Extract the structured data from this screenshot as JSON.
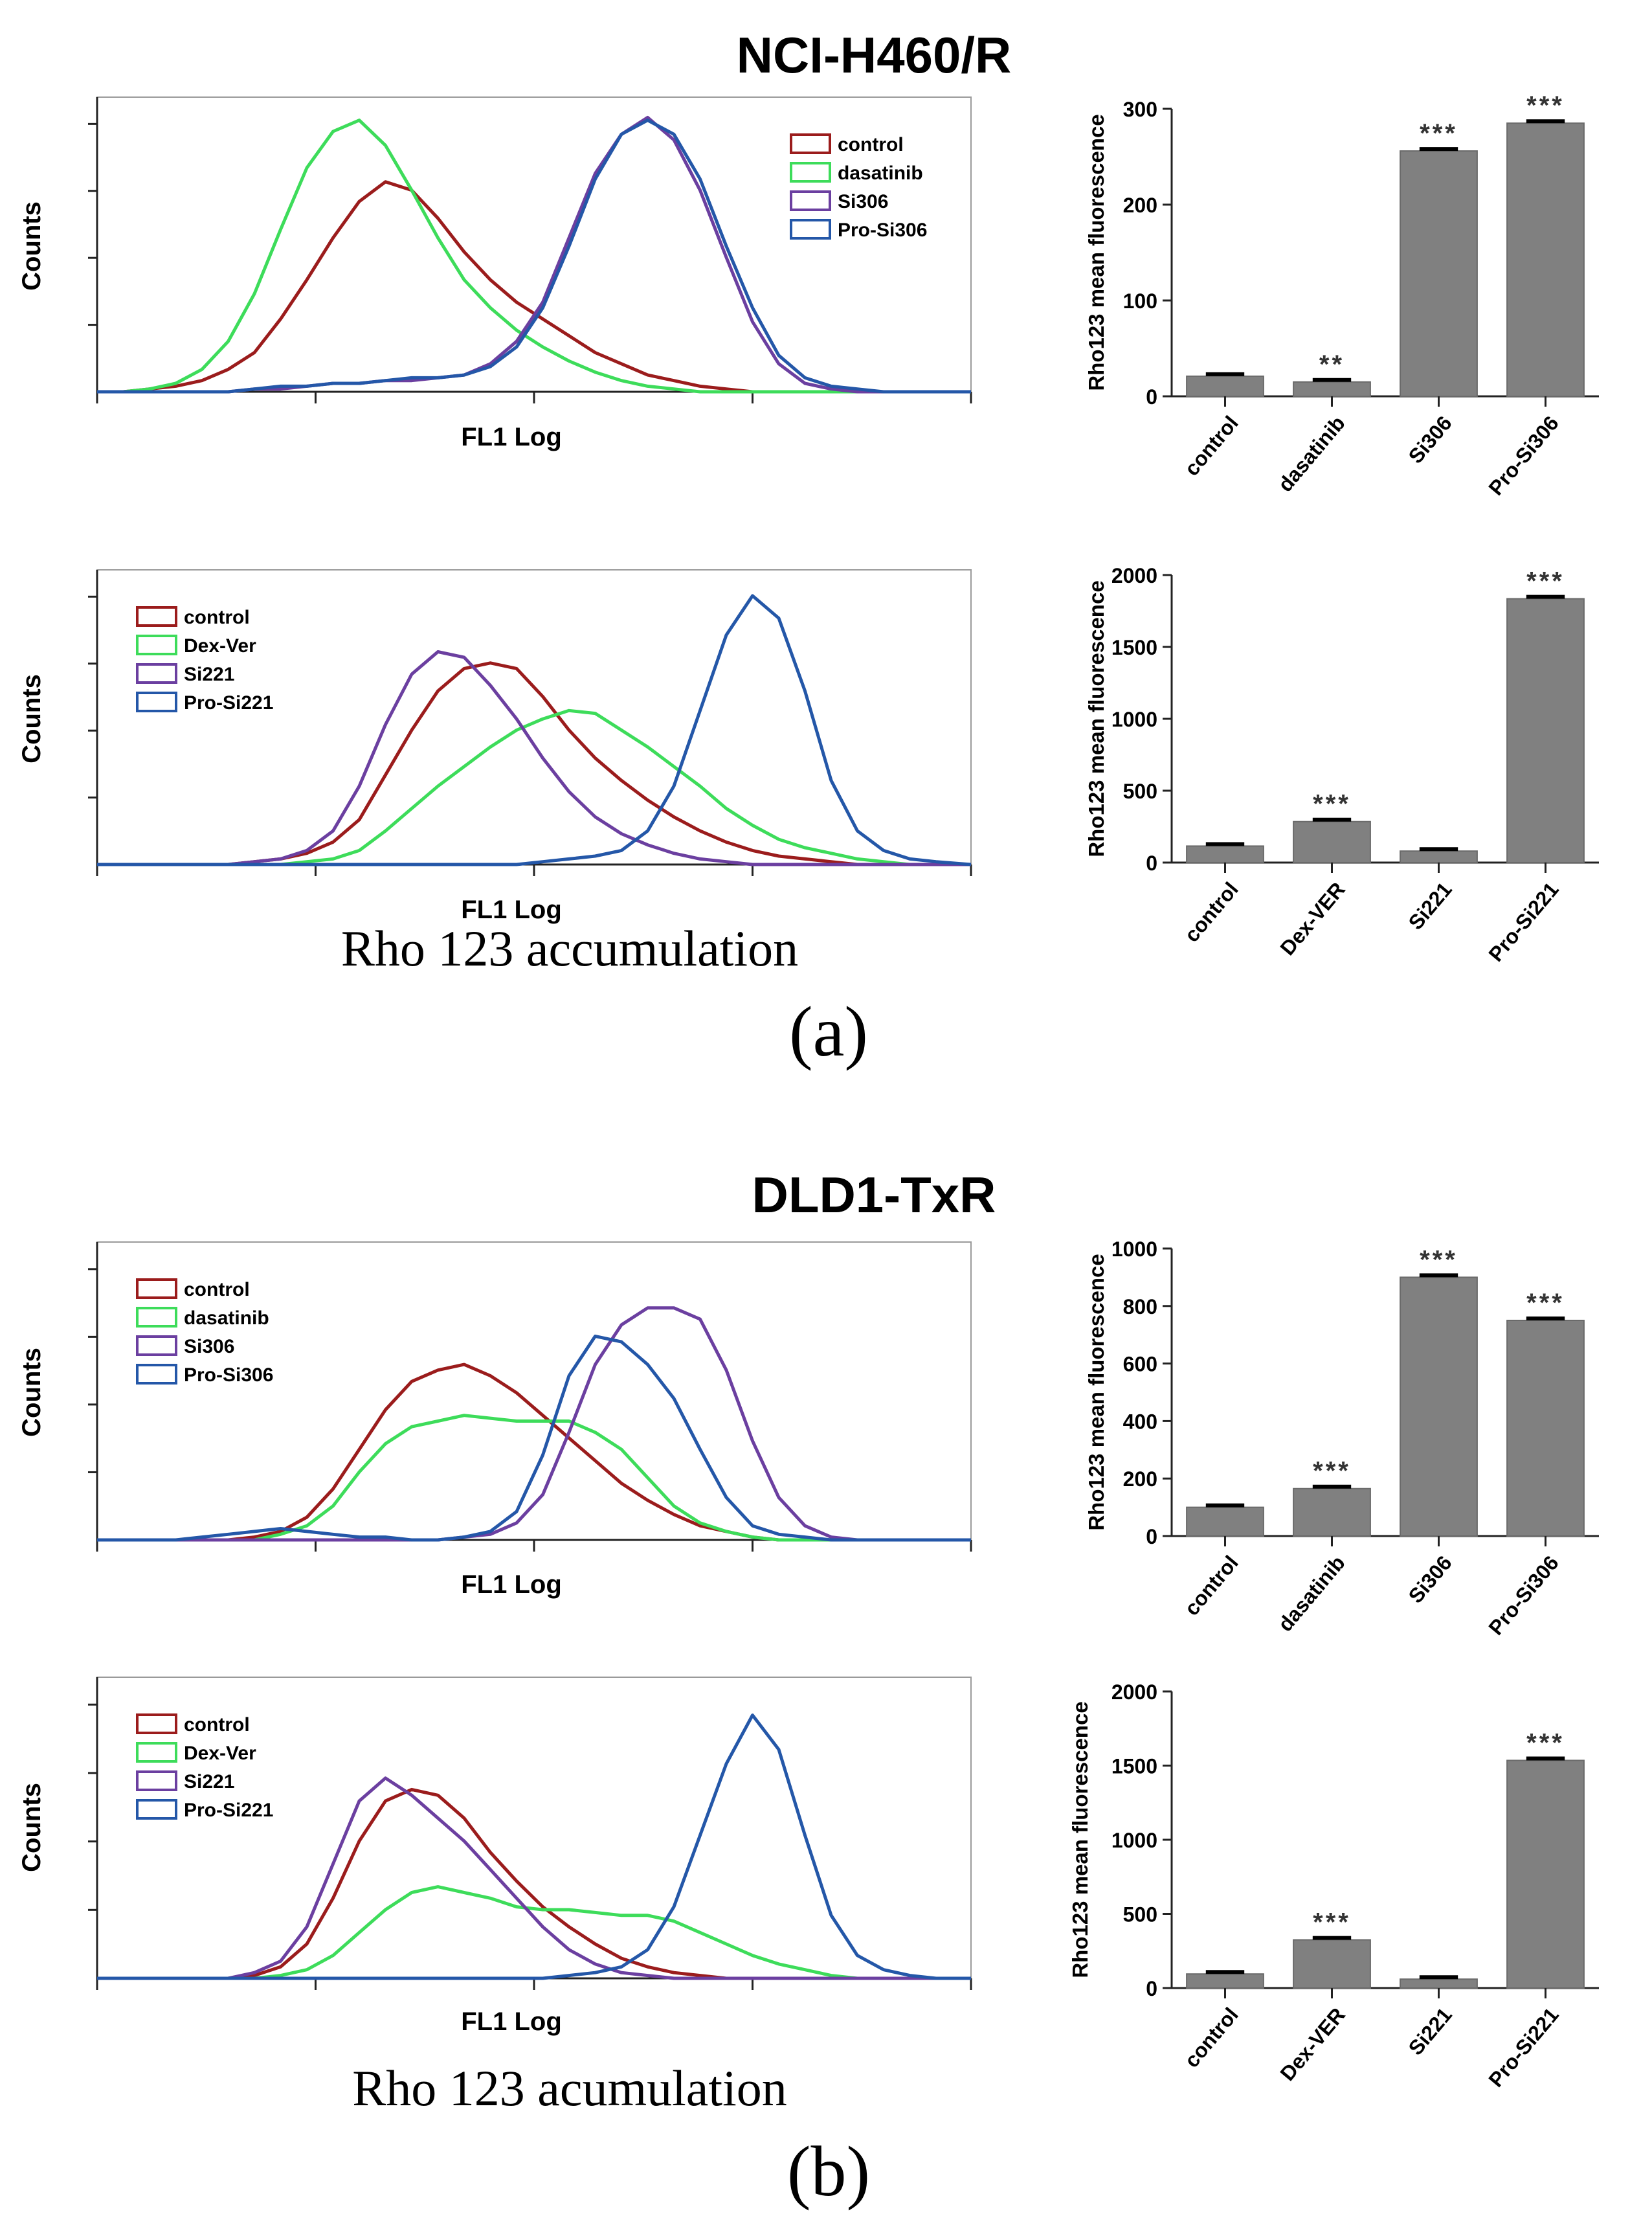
{
  "figure": {
    "section_a": {
      "title": "NCI-H460/R",
      "caption": "Rho 123 accumulation",
      "label": "(a)"
    },
    "section_b": {
      "title": "DLD1-TxR",
      "caption": "Rho 123 acumulation",
      "label": "(b)"
    }
  },
  "colors": {
    "control": "#9b1c1c",
    "dasatinib": "#3ddc5a",
    "Dex-Ver": "#3ddc5a",
    "Si306": "#6b3fa0",
    "Si221": "#6b3fa0",
    "Pro-Si306": "#2457a8",
    "Pro-Si221": "#2457a8",
    "bar": "#808080"
  },
  "chart_data": [
    {
      "type": "line",
      "id": "hist_a1",
      "title": "",
      "xlabel": "FL1 Log",
      "ylabel": "Counts",
      "legend_position": "top-right",
      "x": [
        0,
        3,
        6,
        9,
        12,
        15,
        18,
        21,
        24,
        27,
        30,
        33,
        36,
        39,
        42,
        45,
        48,
        51,
        54,
        57,
        60,
        63,
        66,
        69,
        72,
        75,
        78,
        81,
        84,
        87,
        90,
        93,
        96,
        100
      ],
      "series": [
        {
          "name": "control",
          "values": [
            0,
            0,
            1,
            2,
            4,
            8,
            14,
            26,
            40,
            55,
            68,
            75,
            72,
            62,
            50,
            40,
            32,
            26,
            20,
            14,
            10,
            6,
            4,
            2,
            1,
            0,
            0,
            0,
            0,
            0,
            0,
            0,
            0,
            0
          ]
        },
        {
          "name": "dasatinib",
          "values": [
            0,
            0,
            1,
            3,
            8,
            18,
            35,
            58,
            80,
            93,
            97,
            88,
            72,
            55,
            40,
            30,
            22,
            16,
            11,
            7,
            4,
            2,
            1,
            0,
            0,
            0,
            0,
            0,
            0,
            0,
            0,
            0,
            0,
            0
          ]
        },
        {
          "name": "Si306",
          "values": [
            0,
            0,
            0,
            0,
            0,
            0,
            1,
            1,
            2,
            3,
            3,
            4,
            4,
            5,
            6,
            10,
            18,
            32,
            55,
            78,
            92,
            98,
            90,
            72,
            48,
            25,
            10,
            3,
            1,
            0,
            0,
            0,
            0,
            0
          ]
        },
        {
          "name": "Pro-Si306",
          "values": [
            0,
            0,
            0,
            0,
            0,
            0,
            1,
            2,
            2,
            3,
            3,
            4,
            5,
            5,
            6,
            9,
            16,
            30,
            52,
            76,
            92,
            97,
            92,
            76,
            52,
            30,
            13,
            5,
            2,
            1,
            0,
            0,
            0,
            0
          ]
        }
      ]
    },
    {
      "type": "bar",
      "id": "bar_a1",
      "ylabel": "Rho123 mean fluorescence",
      "ylim": [
        0,
        300
      ],
      "yticks": [
        0,
        100,
        200,
        300
      ],
      "categories": [
        "control",
        "dasatinib",
        "Si306",
        "Pro-Si306"
      ],
      "values": [
        21,
        15,
        256,
        285
      ],
      "significance": [
        "",
        "**",
        "***",
        "***"
      ]
    },
    {
      "type": "line",
      "id": "hist_a2",
      "title": "",
      "xlabel": "FL1 Log",
      "ylabel": "Counts",
      "legend_position": "top-left",
      "x": [
        0,
        3,
        6,
        9,
        12,
        15,
        18,
        21,
        24,
        27,
        30,
        33,
        36,
        39,
        42,
        45,
        48,
        51,
        54,
        57,
        60,
        63,
        66,
        69,
        72,
        75,
        78,
        81,
        84,
        87,
        90,
        93,
        96,
        100
      ],
      "series": [
        {
          "name": "control",
          "values": [
            0,
            0,
            0,
            0,
            0,
            0,
            1,
            2,
            4,
            8,
            16,
            32,
            48,
            62,
            70,
            72,
            70,
            60,
            48,
            38,
            30,
            23,
            17,
            12,
            8,
            5,
            3,
            2,
            1,
            0,
            0,
            0,
            0,
            0
          ]
        },
        {
          "name": "Dex-Ver",
          "values": [
            0,
            0,
            0,
            0,
            0,
            0,
            0,
            0,
            1,
            2,
            5,
            12,
            20,
            28,
            35,
            42,
            48,
            52,
            55,
            54,
            48,
            42,
            35,
            28,
            20,
            14,
            9,
            6,
            4,
            2,
            1,
            0,
            0,
            0
          ]
        },
        {
          "name": "Si221",
          "values": [
            0,
            0,
            0,
            0,
            0,
            0,
            1,
            2,
            5,
            12,
            28,
            50,
            68,
            76,
            74,
            64,
            52,
            38,
            26,
            17,
            11,
            7,
            4,
            2,
            1,
            0,
            0,
            0,
            0,
            0,
            0,
            0,
            0,
            0
          ]
        },
        {
          "name": "Pro-Si221",
          "values": [
            0,
            0,
            0,
            0,
            0,
            0,
            0,
            0,
            0,
            0,
            0,
            0,
            0,
            0,
            0,
            0,
            0,
            1,
            2,
            3,
            5,
            12,
            28,
            55,
            82,
            96,
            88,
            62,
            30,
            12,
            5,
            2,
            1,
            0
          ]
        }
      ]
    },
    {
      "type": "bar",
      "id": "bar_a2",
      "ylabel": "Rho123 mean fluorescence",
      "ylim": [
        0,
        2000
      ],
      "yticks": [
        0,
        500,
        1000,
        1500,
        2000
      ],
      "categories": [
        "control",
        "Dex-VER",
        "Si221",
        "Pro-Si221"
      ],
      "values": [
        115,
        285,
        80,
        1835
      ],
      "significance": [
        "",
        "***",
        "",
        "***"
      ]
    },
    {
      "type": "line",
      "id": "hist_b1",
      "title": "",
      "xlabel": "FL1 Log",
      "ylabel": "Counts",
      "legend_position": "top-left",
      "x": [
        0,
        3,
        6,
        9,
        12,
        15,
        18,
        21,
        24,
        27,
        30,
        33,
        36,
        39,
        42,
        45,
        48,
        51,
        54,
        57,
        60,
        63,
        66,
        69,
        72,
        75,
        78,
        81,
        84,
        87,
        90,
        93,
        96,
        100
      ],
      "series": [
        {
          "name": "control",
          "values": [
            0,
            0,
            0,
            0,
            0,
            0,
            1,
            3,
            8,
            18,
            32,
            46,
            56,
            60,
            62,
            58,
            52,
            44,
            36,
            28,
            20,
            14,
            9,
            5,
            3,
            1,
            0,
            0,
            0,
            0,
            0,
            0,
            0,
            0
          ]
        },
        {
          "name": "dasatinib",
          "values": [
            0,
            0,
            0,
            0,
            0,
            0,
            0,
            2,
            5,
            12,
            24,
            34,
            40,
            42,
            44,
            43,
            42,
            42,
            42,
            38,
            32,
            22,
            12,
            6,
            3,
            1,
            0,
            0,
            0,
            0,
            0,
            0,
            0,
            0
          ]
        },
        {
          "name": "Si306",
          "values": [
            0,
            0,
            0,
            0,
            0,
            0,
            0,
            0,
            0,
            0,
            0,
            0,
            0,
            0,
            1,
            2,
            6,
            16,
            38,
            62,
            76,
            82,
            82,
            78,
            60,
            35,
            15,
            5,
            1,
            0,
            0,
            0,
            0,
            0
          ]
        },
        {
          "name": "Pro-Si306",
          "values": [
            0,
            0,
            0,
            0,
            1,
            2,
            3,
            4,
            3,
            2,
            1,
            1,
            0,
            0,
            1,
            3,
            10,
            30,
            58,
            72,
            70,
            62,
            50,
            32,
            15,
            5,
            2,
            1,
            0,
            0,
            0,
            0,
            0,
            0
          ]
        }
      ]
    },
    {
      "type": "bar",
      "id": "bar_b1",
      "ylabel": "Rho123 mean fluorescence",
      "ylim": [
        0,
        1000
      ],
      "yticks": [
        0,
        200,
        400,
        600,
        800,
        1000
      ],
      "categories": [
        "control",
        "dasatinib",
        "Si306",
        "Pro-Si306"
      ],
      "values": [
        100,
        165,
        900,
        750
      ],
      "significance": [
        "",
        "***",
        "***",
        "***"
      ]
    },
    {
      "type": "line",
      "id": "hist_b2",
      "title": "",
      "xlabel": "FL1 Log",
      "ylabel": "Counts",
      "legend_position": "top-left",
      "x": [
        0,
        3,
        6,
        9,
        12,
        15,
        18,
        21,
        24,
        27,
        30,
        33,
        36,
        39,
        42,
        45,
        48,
        51,
        54,
        57,
        60,
        63,
        66,
        69,
        72,
        75,
        78,
        81,
        84,
        87,
        90,
        93,
        96,
        100
      ],
      "series": [
        {
          "name": "control",
          "values": [
            0,
            0,
            0,
            0,
            0,
            0,
            1,
            4,
            12,
            28,
            48,
            62,
            66,
            64,
            56,
            44,
            34,
            25,
            18,
            12,
            7,
            4,
            2,
            1,
            0,
            0,
            0,
            0,
            0,
            0,
            0,
            0,
            0,
            0
          ]
        },
        {
          "name": "Dex-Ver",
          "values": [
            0,
            0,
            0,
            0,
            0,
            0,
            0,
            1,
            3,
            8,
            16,
            24,
            30,
            32,
            30,
            28,
            25,
            24,
            24,
            23,
            22,
            22,
            20,
            16,
            12,
            8,
            5,
            3,
            1,
            0,
            0,
            0,
            0,
            0
          ]
        },
        {
          "name": "Si221",
          "values": [
            0,
            0,
            0,
            0,
            0,
            0,
            2,
            6,
            18,
            40,
            62,
            70,
            64,
            56,
            48,
            38,
            28,
            18,
            10,
            5,
            2,
            1,
            0,
            0,
            0,
            0,
            0,
            0,
            0,
            0,
            0,
            0,
            0,
            0
          ]
        },
        {
          "name": "Pro-Si221",
          "values": [
            0,
            0,
            0,
            0,
            0,
            0,
            0,
            0,
            0,
            0,
            0,
            0,
            0,
            0,
            0,
            0,
            0,
            0,
            1,
            2,
            4,
            10,
            25,
            50,
            75,
            92,
            80,
            50,
            22,
            8,
            3,
            1,
            0,
            0
          ]
        }
      ]
    },
    {
      "type": "bar",
      "id": "bar_b2",
      "ylabel": "Rho123 mean fluorescence",
      "ylim": [
        0,
        2000
      ],
      "yticks": [
        0,
        500,
        1000,
        1500,
        2000
      ],
      "categories": [
        "control",
        "Dex-VER",
        "Si221",
        "Pro-Si221"
      ],
      "values": [
        95,
        325,
        60,
        1535
      ],
      "significance": [
        "",
        "***",
        "",
        "***"
      ]
    }
  ]
}
